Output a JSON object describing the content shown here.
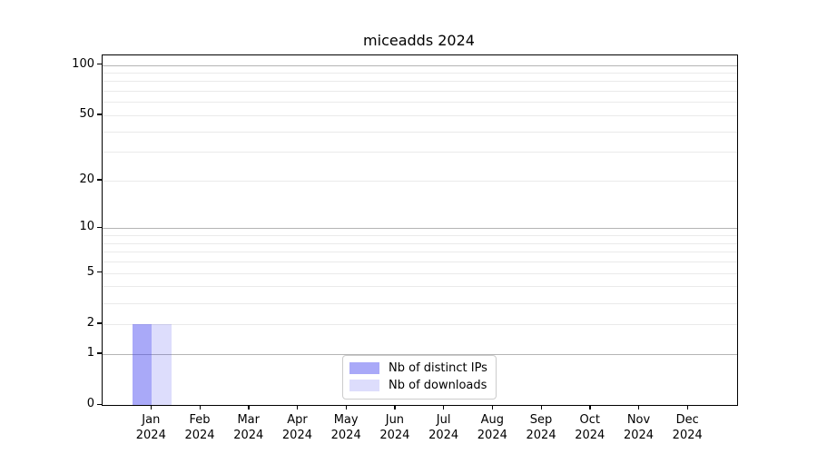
{
  "chart_data": {
    "type": "bar",
    "title": "miceadds 2024",
    "xlabel": "",
    "ylabel": "",
    "yscale": "log1p",
    "ylim": [
      0,
      114
    ],
    "grid": true,
    "yticks": [
      0,
      1,
      2,
      5,
      10,
      20,
      50,
      100
    ],
    "major_gridlines": [
      1,
      10,
      100
    ],
    "minor_gridlines": [
      2,
      3,
      4,
      5,
      6,
      7,
      8,
      9,
      20,
      30,
      40,
      50,
      60,
      70,
      80,
      90
    ],
    "categories": [
      "Jan",
      "Feb",
      "Mar",
      "Apr",
      "May",
      "Jun",
      "Jul",
      "Aug",
      "Sep",
      "Oct",
      "Nov",
      "Dec"
    ],
    "year_label": "2024",
    "series": [
      {
        "name": "Nb of distinct IPs",
        "color": "rgba(64,64,240,0.45)",
        "values": [
          2,
          0,
          0,
          0,
          0,
          0,
          0,
          0,
          0,
          0,
          0,
          0
        ]
      },
      {
        "name": "Nb of downloads",
        "color": "rgba(64,64,240,0.18)",
        "values": [
          2,
          0,
          0,
          0,
          0,
          0,
          0,
          0,
          0,
          0,
          0,
          0
        ]
      }
    ],
    "legend": {
      "position": "lower center"
    }
  }
}
